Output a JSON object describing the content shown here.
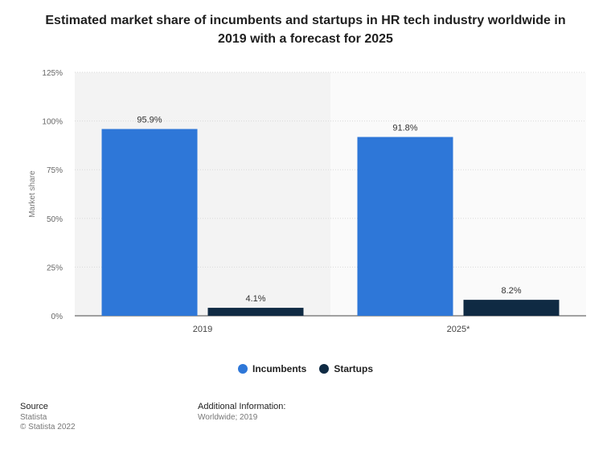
{
  "chart_data": {
    "type": "bar",
    "title": "Estimated market share of incumbents and startups in HR tech industry worldwide in 2019 with a forecast for 2025",
    "categories": [
      "2019",
      "2025*"
    ],
    "series": [
      {
        "name": "Incumbents",
        "values": [
          95.9,
          91.8
        ],
        "labels": [
          "95.9%",
          "91.8%"
        ],
        "color": "#2e77d8"
      },
      {
        "name": "Startups",
        "values": [
          4.1,
          8.2
        ],
        "labels": [
          "4.1%",
          "8.2%"
        ],
        "color": "#0f2a43"
      }
    ],
    "ylabel": "Market share",
    "xlabel": "",
    "ylim": [
      0,
      125
    ],
    "yticks": [
      {
        "value": 0,
        "label": "0%"
      },
      {
        "value": 25,
        "label": "25%"
      },
      {
        "value": 50,
        "label": "50%"
      },
      {
        "value": 75,
        "label": "75%"
      },
      {
        "value": 100,
        "label": "100%"
      },
      {
        "value": 125,
        "label": "125%"
      }
    ],
    "grid": true,
    "legend_position": "bottom"
  },
  "footer": {
    "source_heading": "Source",
    "source_lines": [
      "Statista",
      "© Statista 2022"
    ],
    "additional_heading": "Additional Information:",
    "additional_text": "Worldwide; 2019"
  }
}
